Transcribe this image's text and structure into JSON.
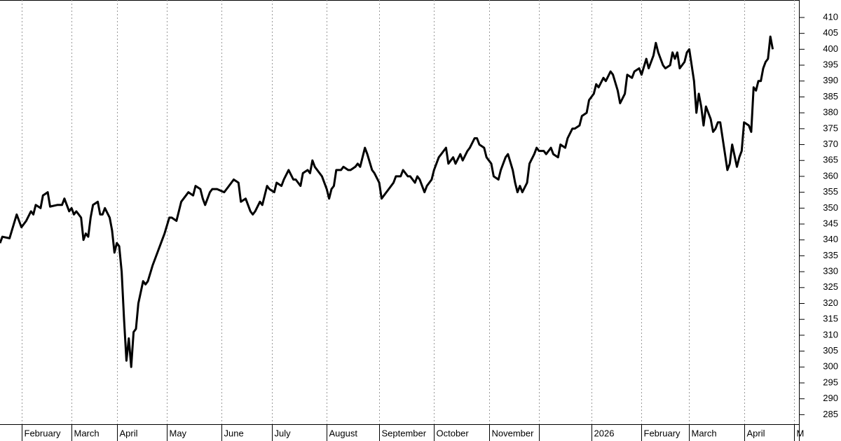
{
  "chart_data": {
    "type": "line",
    "color": "#000000",
    "grid": true,
    "xlim": [
      0,
      335
    ],
    "ylim": [
      282,
      415.5
    ],
    "yticks": [
      285,
      290,
      295,
      300,
      305,
      310,
      315,
      320,
      325,
      330,
      335,
      340,
      345,
      350,
      355,
      360,
      365,
      370,
      375,
      380,
      385,
      390,
      395,
      400,
      405,
      410
    ],
    "xticks": [
      {
        "value": 9,
        "label": "February"
      },
      {
        "value": 30,
        "label": "March"
      },
      {
        "value": 49,
        "label": "April"
      },
      {
        "value": 70,
        "label": "May"
      },
      {
        "value": 93,
        "label": "June"
      },
      {
        "value": 114,
        "label": "July"
      },
      {
        "value": 137,
        "label": "August"
      },
      {
        "value": 159,
        "label": "September"
      },
      {
        "value": 182,
        "label": "October"
      },
      {
        "value": 205,
        "label": "November"
      },
      {
        "value": 226,
        "label": null
      },
      {
        "value": 248,
        "label": "2026"
      },
      {
        "value": 269,
        "label": "February"
      },
      {
        "value": 289,
        "label": "March"
      },
      {
        "value": 312,
        "label": "April"
      },
      {
        "value": 333,
        "label": "M"
      }
    ],
    "x": [
      0,
      1,
      4,
      5,
      7,
      9,
      11,
      13,
      14,
      15,
      17,
      18,
      20,
      21,
      24,
      26,
      27,
      29,
      30,
      31,
      32,
      34,
      35,
      36,
      37,
      38,
      39,
      41,
      42,
      43,
      44,
      46,
      47,
      48,
      49,
      50,
      51,
      52,
      53,
      54,
      55,
      56,
      57,
      58,
      60,
      61,
      62,
      64,
      65,
      66,
      68,
      69,
      71,
      72,
      74,
      75,
      76,
      78,
      79,
      81,
      82,
      84,
      85,
      86,
      88,
      89,
      91,
      94,
      95,
      96,
      98,
      100,
      101,
      103,
      105,
      106,
      107,
      109,
      110,
      112,
      113,
      115,
      116,
      118,
      119,
      121,
      123,
      124,
      126,
      127,
      129,
      130,
      131,
      132,
      134,
      135,
      137,
      138,
      139,
      140,
      141,
      143,
      144,
      146,
      147,
      149,
      150,
      151,
      153,
      154,
      156,
      157,
      159,
      160,
      162,
      163,
      165,
      166,
      168,
      169,
      171,
      172,
      174,
      175,
      176,
      178,
      179,
      181,
      182,
      184,
      185,
      187,
      188,
      190,
      191,
      193,
      194,
      196,
      197,
      199,
      200,
      201,
      203,
      204,
      206,
      207,
      209,
      210,
      212,
      213,
      215,
      216,
      217,
      218,
      219,
      221,
      222,
      224,
      225,
      226,
      228,
      229,
      231,
      232,
      234,
      235,
      237,
      238,
      240,
      241,
      243,
      244,
      246,
      247,
      249,
      250,
      251,
      253,
      254,
      256,
      257,
      259,
      260,
      262,
      263,
      265,
      266,
      268,
      269,
      271,
      272,
      274,
      275,
      276,
      278,
      279,
      281,
      282,
      283,
      284,
      285,
      287,
      288,
      289,
      291,
      292,
      293,
      294,
      295,
      296,
      298,
      299,
      300,
      301,
      302,
      304,
      305,
      306,
      307,
      309,
      310,
      311,
      312,
      314,
      315,
      316,
      317,
      318,
      319,
      320,
      321,
      322,
      323,
      324
    ],
    "values": [
      339,
      341,
      340.5,
      343,
      348,
      344,
      346,
      349,
      348,
      351,
      350,
      354,
      355,
      350.5,
      351,
      351,
      353,
      349,
      350,
      348,
      349,
      347,
      340,
      342,
      341,
      347,
      351,
      352,
      348,
      348,
      350,
      347,
      343,
      336,
      339,
      338,
      330,
      315,
      302,
      309,
      300,
      311,
      312,
      320,
      327,
      326,
      327,
      332,
      334,
      336,
      340,
      342,
      347,
      347,
      346,
      349,
      352,
      354,
      355,
      354,
      357,
      356,
      353,
      351,
      355,
      356,
      356,
      355,
      356,
      357,
      359,
      358,
      352,
      353,
      349,
      348,
      349,
      352,
      351,
      357,
      356,
      355,
      358,
      357,
      359,
      362,
      359,
      359,
      357,
      361,
      362,
      361,
      365,
      363,
      361,
      360,
      356,
      353,
      356,
      357,
      362,
      362,
      363,
      362,
      362,
      363,
      364,
      363,
      369,
      367,
      362,
      361,
      358,
      353,
      355,
      356,
      358,
      360,
      360,
      362,
      360,
      360,
      358,
      360,
      359,
      355,
      357,
      359,
      362,
      366,
      367,
      369,
      364,
      366,
      364,
      367,
      365,
      368,
      369,
      372,
      372,
      370,
      369,
      366,
      364,
      360,
      359,
      362,
      366,
      367,
      362,
      358,
      355,
      357,
      355,
      358,
      364,
      367,
      369,
      368,
      368,
      367,
      369,
      367,
      366,
      370,
      369,
      372,
      375,
      375,
      376,
      379,
      380,
      384,
      386,
      389,
      388,
      391,
      390,
      393,
      392,
      387,
      383,
      386,
      392,
      391,
      393,
      394,
      392,
      397,
      394,
      398,
      402,
      399,
      395,
      394,
      395,
      399,
      397,
      399,
      394,
      396,
      399,
      400,
      390,
      380,
      386,
      382,
      376,
      382,
      378,
      374,
      375,
      377,
      377,
      367,
      362,
      364,
      370,
      363,
      366,
      368,
      377,
      376,
      374,
      388,
      387,
      390,
      390,
      394,
      396,
      397,
      404,
      400
    ]
  }
}
